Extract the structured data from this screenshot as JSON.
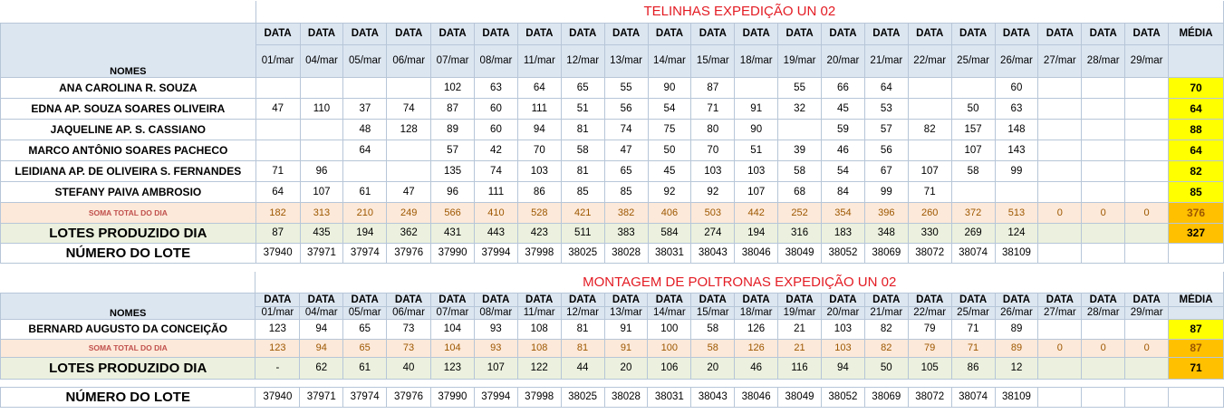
{
  "date_header": "DATA",
  "media_header": "MÉDIA",
  "nomes_label": "NOMES",
  "dates": [
    "01/mar",
    "04/mar",
    "05/mar",
    "06/mar",
    "07/mar",
    "08/mar",
    "11/mar",
    "12/mar",
    "13/mar",
    "14/mar",
    "15/mar",
    "18/mar",
    "19/mar",
    "20/mar",
    "21/mar",
    "22/mar",
    "25/mar",
    "26/mar",
    "27/mar",
    "28/mar",
    "29/mar"
  ],
  "section1": {
    "title": "TELINHAS EXPEDIÇÃO UN 02",
    "workers": [
      {
        "name": "ANA CAROLINA R. SOUZA",
        "values": [
          "",
          "",
          "",
          "",
          "102",
          "63",
          "64",
          "65",
          "55",
          "90",
          "87",
          "",
          "55",
          "66",
          "64",
          "",
          "",
          "60",
          "",
          "",
          ""
        ],
        "media": "70"
      },
      {
        "name": "EDNA AP. SOUZA SOARES OLIVEIRA",
        "values": [
          "47",
          "110",
          "37",
          "74",
          "87",
          "60",
          "111",
          "51",
          "56",
          "54",
          "71",
          "91",
          "32",
          "45",
          "53",
          "",
          "50",
          "63",
          "",
          "",
          ""
        ],
        "media": "64"
      },
      {
        "name": "JAQUELINE AP.  S. CASSIANO",
        "values": [
          "",
          "",
          "48",
          "128",
          "89",
          "60",
          "94",
          "81",
          "74",
          "75",
          "80",
          "90",
          "",
          "59",
          "57",
          "82",
          "157",
          "148",
          "",
          "",
          ""
        ],
        "media": "88"
      },
      {
        "name": "MARCO ANTÔNIO SOARES PACHECO",
        "values": [
          "",
          "",
          "64",
          "",
          "57",
          "42",
          "70",
          "58",
          "47",
          "50",
          "70",
          "51",
          "39",
          "46",
          "56",
          "",
          "107",
          "143",
          "",
          "",
          ""
        ],
        "media": "64"
      },
      {
        "name": "LEIDIANA AP. DE OLIVEIRA S. FERNANDES",
        "values": [
          "71",
          "96",
          "",
          "",
          "135",
          "74",
          "103",
          "81",
          "65",
          "45",
          "103",
          "103",
          "58",
          "54",
          "67",
          "107",
          "58",
          "99",
          "",
          "",
          ""
        ],
        "media": "82"
      },
      {
        "name": "STEFANY PAIVA AMBROSIO",
        "values": [
          "64",
          "107",
          "61",
          "47",
          "96",
          "111",
          "86",
          "85",
          "85",
          "92",
          "92",
          "107",
          "68",
          "84",
          "99",
          "71",
          "",
          "",
          "",
          "",
          ""
        ],
        "media": "85"
      }
    ],
    "soma": {
      "label": "SOMA TOTAL DO DIA",
      "values": [
        "182",
        "313",
        "210",
        "249",
        "566",
        "410",
        "528",
        "421",
        "382",
        "406",
        "503",
        "442",
        "252",
        "354",
        "396",
        "260",
        "372",
        "513",
        "0",
        "0",
        "0"
      ],
      "media": "376"
    },
    "lotes": {
      "label": "LOTES PRODUZIDO DIA",
      "values": [
        "87",
        "435",
        "194",
        "362",
        "431",
        "443",
        "423",
        "511",
        "383",
        "584",
        "274",
        "194",
        "316",
        "183",
        "348",
        "330",
        "269",
        "124",
        "",
        "",
        ""
      ],
      "media": "327"
    },
    "numero": {
      "label": "NÚMERO DO LOTE",
      "values": [
        "37940",
        "37971",
        "37974",
        "37976",
        "37990",
        "37994",
        "37998",
        "38025",
        "38028",
        "38031",
        "38043",
        "38046",
        "38049",
        "38052",
        "38069",
        "38072",
        "38074",
        "38109",
        "",
        "",
        ""
      ]
    }
  },
  "section2": {
    "title": "MONTAGEM DE POLTRONAS EXPEDIÇÃO UN 02",
    "workers": [
      {
        "name": "BERNARD AUGUSTO DA CONCEIÇÃO",
        "values": [
          "123",
          "94",
          "65",
          "73",
          "104",
          "93",
          "108",
          "81",
          "91",
          "100",
          "58",
          "126",
          "21",
          "103",
          "82",
          "79",
          "71",
          "89",
          "",
          "",
          ""
        ],
        "media": "87"
      }
    ],
    "soma": {
      "label": "SOMA TOTAL DO DIA",
      "values": [
        "123",
        "94",
        "65",
        "73",
        "104",
        "93",
        "108",
        "81",
        "91",
        "100",
        "58",
        "126",
        "21",
        "103",
        "82",
        "79",
        "71",
        "89",
        "0",
        "0",
        "0"
      ],
      "media": "87"
    },
    "lotes": {
      "label": "LOTES PRODUZIDO DIA",
      "values": [
        "-",
        "62",
        "61",
        "40",
        "123",
        "107",
        "122",
        "44",
        "20",
        "106",
        "20",
        "46",
        "116",
        "94",
        "50",
        "105",
        "86",
        "12",
        "",
        "",
        ""
      ],
      "media": "71"
    },
    "numero": {
      "label": "NÚMERO DO LOTE",
      "values": [
        "37940",
        "37971",
        "37974",
        "37976",
        "37990",
        "37994",
        "37998",
        "38025",
        "38028",
        "38031",
        "38043",
        "38046",
        "38049",
        "38052",
        "38069",
        "38072",
        "38074",
        "38109",
        "",
        "",
        ""
      ]
    }
  },
  "colors": {
    "header_bg": "#dce6f1",
    "soma_bg": "#fde9d9",
    "lotes_bg": "#ebf1de",
    "media_yellow": "#ffff00",
    "media_orange": "#ffc000",
    "title_red": "#e31b23"
  }
}
